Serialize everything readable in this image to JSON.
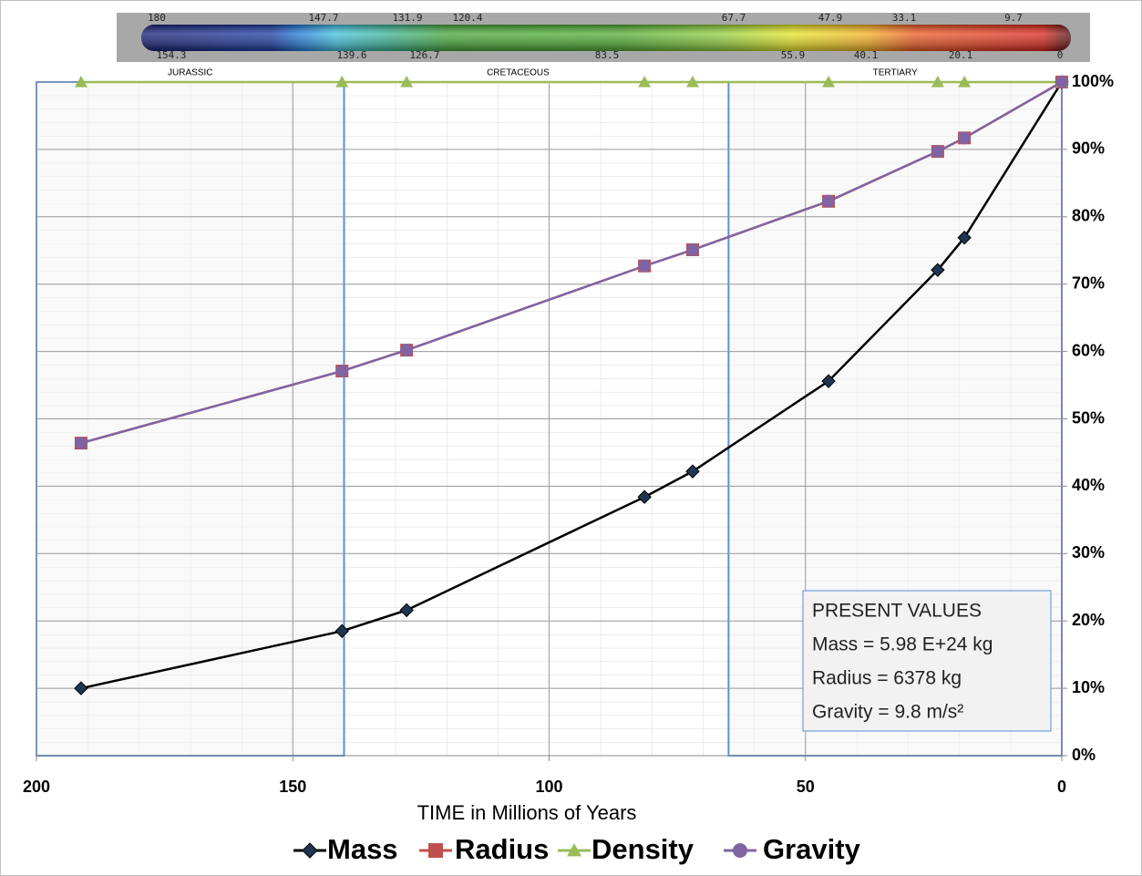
{
  "chart_data": {
    "type": "line",
    "color_bar": {
      "top_labels": [
        180,
        147.7,
        131.9,
        120.4,
        67.7,
        47.9,
        33.1,
        9.7
      ],
      "bottom_labels": [
        154.3,
        139.6,
        126.7,
        83.5,
        55.9,
        40.1,
        20.1,
        0
      ]
    },
    "periods": [
      {
        "label": "JURASSIC",
        "start": 200,
        "end": 140,
        "outlined": true
      },
      {
        "label": "CRETACEOUS",
        "start": 140,
        "end": 65,
        "outlined": false
      },
      {
        "label": "TERTIARY",
        "start": 65,
        "end": 0,
        "outlined": true
      }
    ],
    "x": [
      191.3,
      140.4,
      127.8,
      81.4,
      72,
      45.5,
      24.2,
      19,
      0
    ],
    "series": [
      {
        "name": "Mass",
        "color": "#000000",
        "marker": "diamond",
        "values": [
          10.0,
          18.5,
          21.6,
          38.4,
          42.2,
          55.6,
          72.1,
          76.9,
          100
        ]
      },
      {
        "name": "Radius",
        "color": "#c0504d",
        "marker": "square",
        "values": [
          46.4,
          57.1,
          60.2,
          72.7,
          75.1,
          82.3,
          89.7,
          91.7,
          100
        ]
      },
      {
        "name": "Density",
        "color": "#9bbb59",
        "marker": "triangle",
        "values": [
          100,
          100,
          100,
          100,
          100,
          100,
          100,
          100,
          100
        ]
      },
      {
        "name": "Gravity",
        "color": "#8064a2",
        "marker": "circle",
        "values": [
          46.4,
          57.1,
          60.2,
          72.7,
          75.1,
          82.3,
          89.7,
          91.7,
          100
        ]
      }
    ],
    "xlim": [
      200,
      0
    ],
    "xticks": [
      200,
      150,
      100,
      50,
      0
    ],
    "ylim": [
      0,
      100
    ],
    "yticks": [
      {
        "value": 0,
        "label": "0%"
      },
      {
        "value": 10,
        "label": "10%"
      },
      {
        "value": 20,
        "label": "20%"
      },
      {
        "value": 30,
        "label": "30%"
      },
      {
        "value": 40,
        "label": "40%"
      },
      {
        "value": 50,
        "label": "50%"
      },
      {
        "value": 60,
        "label": "60%"
      },
      {
        "value": 70,
        "label": "70%"
      },
      {
        "value": 80,
        "label": "80%"
      },
      {
        "value": 90,
        "label": "90%"
      },
      {
        "value": 100,
        "label": "100%"
      }
    ],
    "grid": true,
    "xlabel": "TIME in Millions of Years",
    "annotation": [
      "PRESENT VALUES",
      "Mass = 5.98 E+24 kg",
      "Radius = 6378 kg",
      "Gravity = 9.8 m/s²"
    ]
  }
}
